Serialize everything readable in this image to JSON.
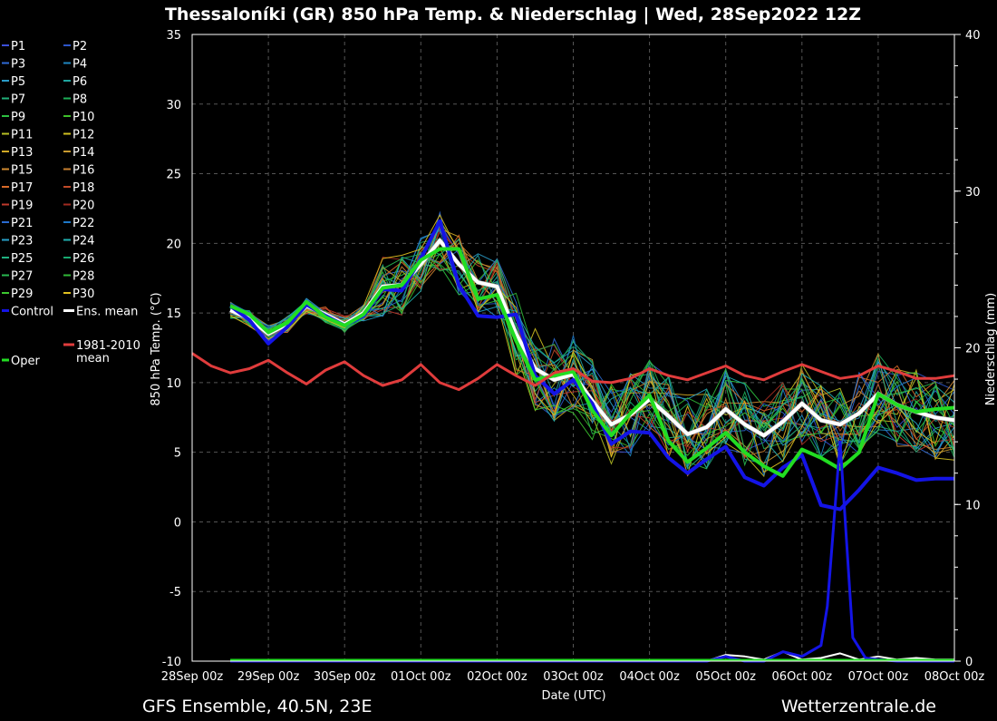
{
  "title": "Thessaloníki  (GR)  850 hPa Temp. & Niederschlag | Wed, 28Sep2022 12Z",
  "footer_left": "GFS Ensemble, 40.5N, 23E",
  "footer_right": "Wetterzentrale.de",
  "chart_data": {
    "type": "line",
    "xlabel": "Date (UTC)",
    "ylabel": "850 hPa Temp. (°C)",
    "y2label": "Niederschlag (mm)",
    "ylim": [
      -10,
      35
    ],
    "y2lim": [
      0,
      40
    ],
    "yticks": [
      -10,
      -5,
      0,
      5,
      10,
      15,
      20,
      25,
      30,
      35
    ],
    "y2ticks": [
      0,
      10,
      20,
      30,
      40
    ],
    "xlim_hours": [
      0,
      240
    ],
    "xticks": [
      "28Sep 00z",
      "29Sep 00z",
      "30Sep 00z",
      "01Oct 00z",
      "02Oct 00z",
      "03Oct 00z",
      "04Oct 00z",
      "05Oct 00z",
      "06Oct 00z",
      "07Oct 00z",
      "08Oct 00z"
    ],
    "grid": true,
    "legend_position": "left, outside plot",
    "legend": [
      {
        "label": "P1",
        "color": "#3b4fd8"
      },
      {
        "label": "P2",
        "color": "#2d55c8"
      },
      {
        "label": "P3",
        "color": "#2f6ad6"
      },
      {
        "label": "P4",
        "color": "#1f86c0"
      },
      {
        "label": "P5",
        "color": "#2a9bc8"
      },
      {
        "label": "P6",
        "color": "#1fa5a0"
      },
      {
        "label": "P7",
        "color": "#21b07a"
      },
      {
        "label": "P8",
        "color": "#1dae58"
      },
      {
        "label": "P9",
        "color": "#2cc040"
      },
      {
        "label": "P10",
        "color": "#3ec02a"
      },
      {
        "label": "P11",
        "color": "#b7c025"
      },
      {
        "label": "P12",
        "color": "#d0c020"
      },
      {
        "label": "P13",
        "color": "#d0a825"
      },
      {
        "label": "P14",
        "color": "#c89a30"
      },
      {
        "label": "P15",
        "color": "#d08a30"
      },
      {
        "label": "P16",
        "color": "#c98030"
      },
      {
        "label": "P17",
        "color": "#d86a28"
      },
      {
        "label": "P18",
        "color": "#c04a28"
      },
      {
        "label": "P19",
        "color": "#c03a2c"
      },
      {
        "label": "P20",
        "color": "#a02a20"
      },
      {
        "label": "P21",
        "color": "#2a6ad0"
      },
      {
        "label": "P22",
        "color": "#1e78c8"
      },
      {
        "label": "P23",
        "color": "#28a0c8"
      },
      {
        "label": "P24",
        "color": "#20b0b0"
      },
      {
        "label": "P25",
        "color": "#20b080"
      },
      {
        "label": "P26",
        "color": "#18a870"
      },
      {
        "label": "P27",
        "color": "#28b850"
      },
      {
        "label": "P28",
        "color": "#30b838"
      },
      {
        "label": "P29",
        "color": "#3cc830"
      },
      {
        "label": "P30",
        "color": "#e0c020"
      },
      {
        "label": "Control",
        "color": "#1414e6"
      },
      {
        "label": "Ens. mean",
        "color": "#ffffff"
      },
      {
        "label": "1981-2010 mean",
        "color": "#e03c3c"
      },
      {
        "label": "Oper",
        "color": "#22dd22"
      }
    ],
    "series": [
      {
        "name": "Ens. mean",
        "color": "#ffffff",
        "x_hours": [
          12,
          18,
          24,
          30,
          36,
          42,
          48,
          54,
          60,
          66,
          72,
          78,
          84,
          90,
          96,
          102,
          108,
          114,
          120,
          126,
          132,
          138,
          144,
          150,
          156,
          162,
          168,
          174,
          180,
          186,
          192,
          198,
          204,
          210,
          216,
          222,
          228,
          234,
          240
        ],
        "values": [
          15.2,
          14.6,
          13.5,
          14.2,
          15.5,
          14.9,
          14.2,
          15.0,
          16.9,
          17.0,
          18.5,
          20.2,
          18.5,
          17.2,
          16.9,
          13.5,
          11.0,
          10.2,
          10.6,
          8.7,
          7.0,
          7.7,
          8.8,
          7.6,
          6.3,
          6.8,
          8.1,
          7.0,
          6.2,
          7.2,
          8.5,
          7.3,
          7.0,
          7.8,
          9.2,
          8.4,
          7.9,
          7.5,
          7.3
        ]
      },
      {
        "name": "Control",
        "color": "#1414e6",
        "x_hours": [
          12,
          18,
          24,
          30,
          36,
          42,
          48,
          54,
          60,
          66,
          72,
          78,
          84,
          90,
          96,
          102,
          108,
          114,
          120,
          126,
          132,
          138,
          144,
          150,
          156,
          162,
          168,
          174,
          180,
          186,
          192,
          198,
          204,
          210,
          216,
          222,
          228,
          234,
          240
        ],
        "values": [
          15.5,
          14.5,
          12.8,
          14.0,
          15.6,
          14.8,
          14.1,
          14.8,
          16.7,
          16.6,
          18.9,
          21.6,
          17.0,
          14.8,
          14.7,
          14.9,
          10.5,
          9.2,
          10.2,
          8.5,
          5.6,
          6.5,
          6.4,
          4.6,
          3.5,
          4.5,
          5.4,
          3.2,
          2.6,
          3.9,
          4.8,
          1.2,
          0.9,
          2.3,
          3.9,
          3.5,
          3.0,
          3.1,
          3.1
        ]
      },
      {
        "name": "Oper",
        "color": "#22dd22",
        "x_hours": [
          12,
          18,
          24,
          30,
          36,
          42,
          48,
          54,
          60,
          66,
          72,
          78,
          84,
          90,
          96,
          102,
          108,
          114,
          120,
          126,
          132,
          138,
          144,
          150,
          156,
          162,
          168,
          174,
          180,
          186,
          192,
          198,
          204,
          210,
          216,
          222,
          228,
          234,
          240
        ],
        "values": [
          15.5,
          14.9,
          13.6,
          14.3,
          15.8,
          14.7,
          14.1,
          14.9,
          16.8,
          17.0,
          18.8,
          19.6,
          19.6,
          16.0,
          16.3,
          13.0,
          10.2,
          10.5,
          10.8,
          8.0,
          6.2,
          7.8,
          9.1,
          5.8,
          4.3,
          5.3,
          6.4,
          5.0,
          4.0,
          3.3,
          5.2,
          4.6,
          3.8,
          5.0,
          9.2,
          8.4,
          7.9,
          8.1,
          8.2
        ]
      },
      {
        "name": "1981-2010 mean",
        "color": "#e03c3c",
        "x_hours": [
          0,
          6,
          12,
          18,
          24,
          30,
          36,
          42,
          48,
          54,
          60,
          66,
          72,
          78,
          84,
          90,
          96,
          102,
          108,
          114,
          120,
          126,
          132,
          138,
          144,
          150,
          156,
          162,
          168,
          174,
          180,
          186,
          192,
          198,
          204,
          210,
          216,
          222,
          228,
          234,
          240
        ],
        "values": [
          12.1,
          11.2,
          10.7,
          11.0,
          11.6,
          10.7,
          9.9,
          10.9,
          11.5,
          10.5,
          9.8,
          10.2,
          11.3,
          10.0,
          9.5,
          10.3,
          11.3,
          10.5,
          9.8,
          10.7,
          11.0,
          10.1,
          10.0,
          10.3,
          11.0,
          10.5,
          10.2,
          10.7,
          11.2,
          10.5,
          10.2,
          10.8,
          11.3,
          10.8,
          10.3,
          10.5,
          11.2,
          10.8,
          10.3,
          10.3,
          10.5
        ]
      },
      {
        "name": "Precip (ens. mean)",
        "color": "#ffffff",
        "axis": "y2",
        "x_hours": [
          12,
          24,
          48,
          72,
          96,
          120,
          144,
          150,
          156,
          162,
          168,
          174,
          180,
          186,
          192,
          198,
          204,
          210,
          216,
          222,
          228,
          234,
          240
        ],
        "values": [
          0,
          0,
          0,
          0,
          0,
          0,
          0,
          0,
          0,
          0,
          0.4,
          0.3,
          0.1,
          0.6,
          0.1,
          0.2,
          0.5,
          0.1,
          0.3,
          0.1,
          0.2,
          0.1,
          0.1
        ]
      },
      {
        "name": "Precip (control)",
        "color": "#1414e6",
        "axis": "y2",
        "x_hours": [
          12,
          24,
          48,
          72,
          96,
          120,
          144,
          162,
          168,
          174,
          180,
          186,
          192,
          198,
          200,
          204,
          208,
          212,
          216,
          222,
          228,
          234,
          240
        ],
        "values": [
          0,
          0,
          0,
          0,
          0,
          0,
          0,
          0,
          0.3,
          0,
          0,
          0.6,
          0.3,
          1,
          3.5,
          14,
          1.5,
          0.2,
          0.1,
          0,
          0,
          0,
          0
        ]
      }
    ]
  }
}
